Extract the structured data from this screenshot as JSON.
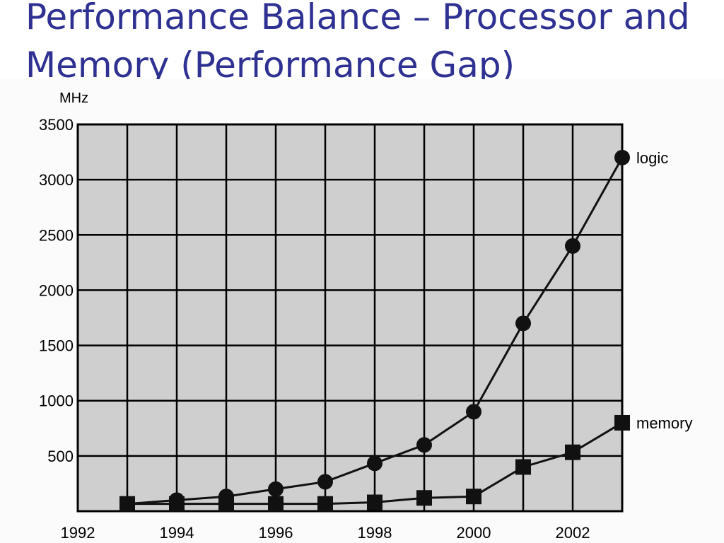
{
  "slide": {
    "title_line1": "Performance Balance – Processor and",
    "title_line2": "Memory (Performance Gap)"
  },
  "colors": {
    "title": "#2e3192",
    "plot_background": "#cfcfcf",
    "grid": "#000000",
    "series": "#111111"
  },
  "chart_data": {
    "type": "line",
    "ylabel": "MHz",
    "xlabel": "",
    "xlim": [
      1992,
      2003
    ],
    "ylim": [
      0,
      3500
    ],
    "xticks": [
      "1992",
      "1994",
      "1996",
      "1998",
      "2000",
      "2002"
    ],
    "yticks": [
      "500",
      "1000",
      "1500",
      "2000",
      "2500",
      "3000",
      "3500"
    ],
    "grid": true,
    "series": [
      {
        "name": "logic",
        "marker": "circle",
        "x": [
          1993,
          1994,
          1995,
          1996,
          1997,
          1998,
          1999,
          2000,
          2001,
          2002,
          2003
        ],
        "y": [
          66,
          100,
          133,
          200,
          266,
          433,
          600,
          900,
          1700,
          2400,
          3200
        ]
      },
      {
        "name": "memory",
        "marker": "square",
        "x": [
          1993,
          1994,
          1995,
          1996,
          1997,
          1998,
          1999,
          2000,
          2001,
          2002,
          2003
        ],
        "y": [
          66,
          66,
          66,
          66,
          66,
          80,
          120,
          133,
          400,
          533,
          800
        ]
      }
    ]
  }
}
